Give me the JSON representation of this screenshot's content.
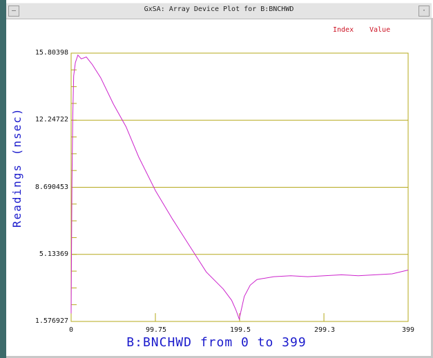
{
  "window": {
    "title": "GxSA: Array Device Plot for B:BNCHWD",
    "menu_icon": "minus-icon",
    "resize_icon": "dot-icon"
  },
  "legend": {
    "index_label": "Index",
    "value_label": "Value"
  },
  "chart_data": {
    "type": "line",
    "xlabel": "B:BNCHWD from 0 to 399",
    "ylabel": "Readings (nsec)",
    "xlim": [
      0,
      399
    ],
    "ylim": [
      1.576927,
      15.80398
    ],
    "x_ticks": [
      "0",
      "99.75",
      "199.5",
      "299.3",
      "399"
    ],
    "y_ticks": [
      "15.80398",
      "12.24722",
      "8.690453",
      "5.13369",
      "1.576927"
    ],
    "grid": true,
    "colors": {
      "line": "#cc22cc",
      "axes": "#b5a81a",
      "labels": "#1a1acc",
      "legend": "#cc1122"
    },
    "series": [
      {
        "x": [
          0,
          1,
          2,
          3,
          5,
          8,
          12,
          18,
          25,
          35,
          50,
          65,
          80,
          100,
          120,
          140,
          160,
          180,
          190,
          195,
          199,
          205,
          212,
          220,
          240,
          260,
          280,
          300,
          320,
          340,
          360,
          380,
          399
        ],
        "y": [
          2.0,
          9.0,
          12.5,
          14.6,
          15.3,
          15.7,
          15.5,
          15.6,
          15.2,
          14.5,
          13.1,
          11.9,
          10.3,
          8.5,
          7.0,
          5.6,
          4.2,
          3.3,
          2.7,
          2.2,
          1.7,
          2.9,
          3.5,
          3.8,
          3.95,
          4.0,
          3.95,
          4.0,
          4.05,
          4.0,
          4.05,
          4.1,
          4.3
        ]
      }
    ]
  }
}
